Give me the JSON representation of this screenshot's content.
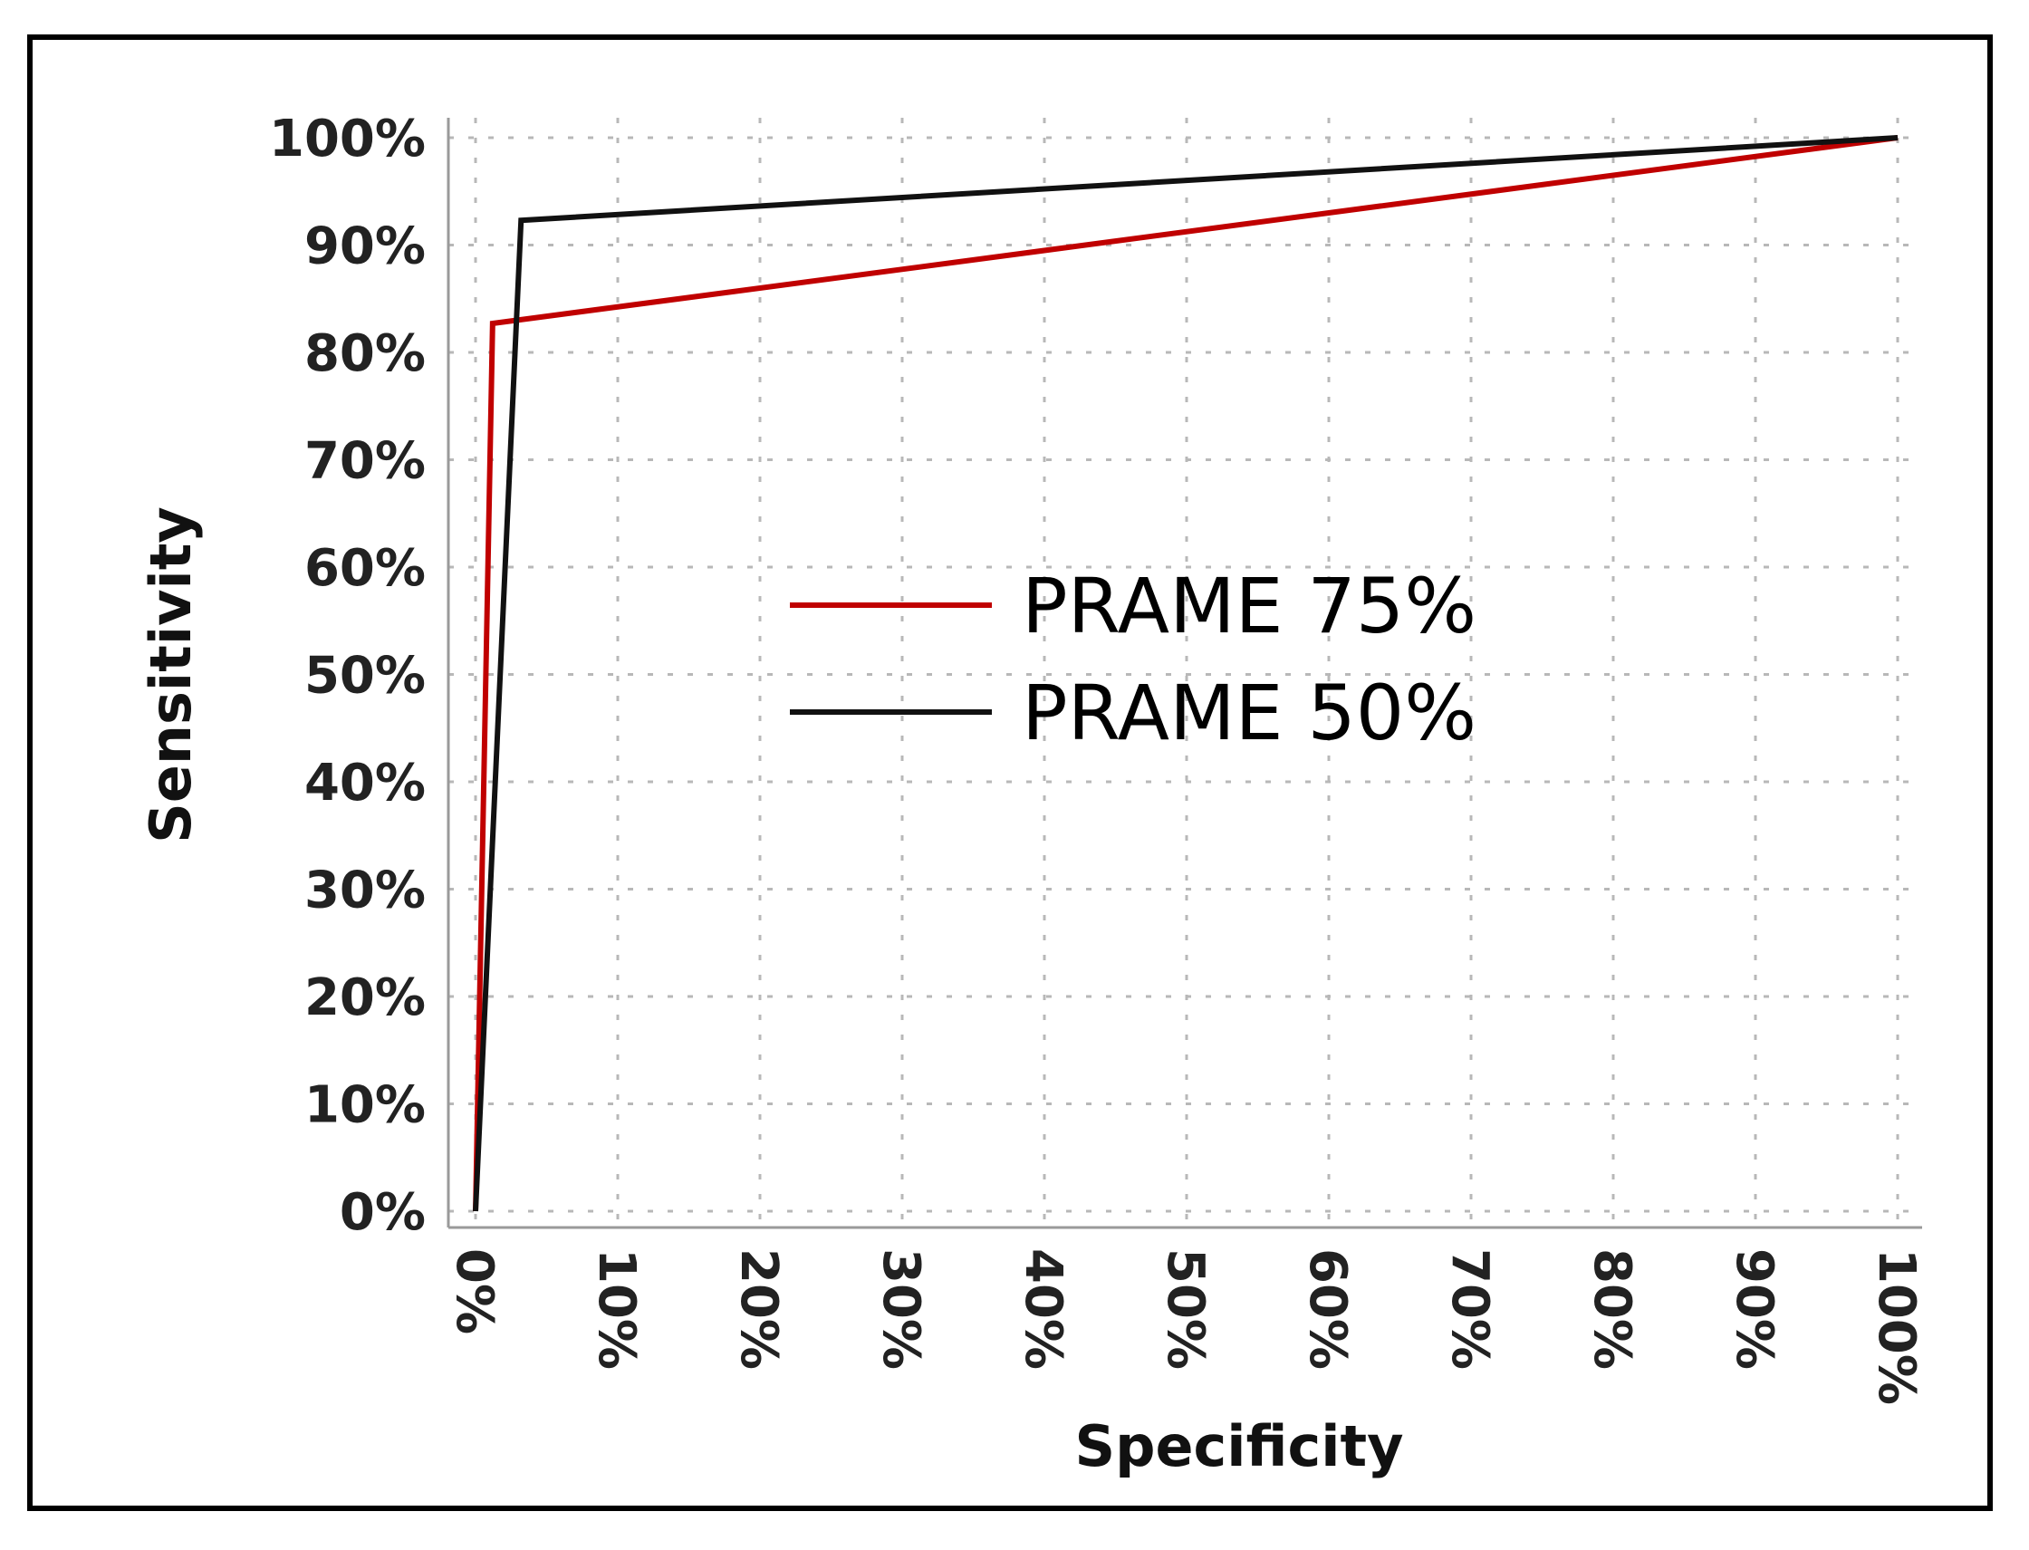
{
  "chart_data": {
    "type": "line",
    "xlabel": "Specificity",
    "ylabel": "Sensitivity",
    "xlim": [
      0,
      100
    ],
    "ylim": [
      0,
      100
    ],
    "x_ticks": [
      "0%",
      "10%",
      "20%",
      "30%",
      "40%",
      "50%",
      "60%",
      "70%",
      "80%",
      "90%",
      "100%"
    ],
    "y_ticks": [
      "0%",
      "10%",
      "20%",
      "30%",
      "40%",
      "50%",
      "60%",
      "70%",
      "80%",
      "90%",
      "100%"
    ],
    "grid": true,
    "legend_position": "center",
    "series": [
      {
        "name": "PRAME 75%",
        "color": "#c00000",
        "points": [
          [
            0,
            0
          ],
          [
            1.2,
            82.7
          ],
          [
            100,
            100
          ]
        ]
      },
      {
        "name": "PRAME 50%",
        "color": "#111111",
        "points": [
          [
            0,
            0
          ],
          [
            3.2,
            92.3
          ],
          [
            100,
            100
          ]
        ]
      }
    ]
  }
}
